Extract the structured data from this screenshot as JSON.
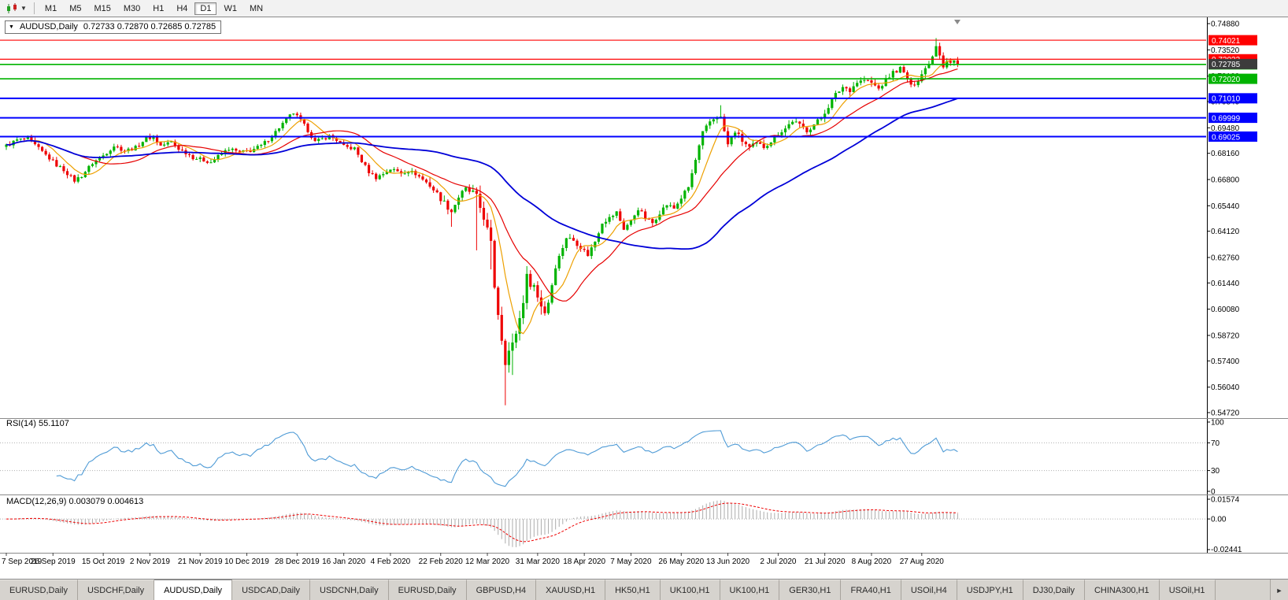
{
  "toolbar": {
    "timeframes": [
      {
        "label": "M1",
        "active": false
      },
      {
        "label": "M5",
        "active": false
      },
      {
        "label": "M15",
        "active": false
      },
      {
        "label": "M30",
        "active": false
      },
      {
        "label": "H1",
        "active": false
      },
      {
        "label": "H4",
        "active": false
      },
      {
        "label": "D1",
        "active": true
      },
      {
        "label": "W1",
        "active": false
      },
      {
        "label": "MN",
        "active": false
      }
    ],
    "chart_type_dropdown_icon": "▼"
  },
  "chart": {
    "symbol": "AUDUSD,Daily",
    "ohlc_text": "0.72733 0.72870 0.72685 0.72785",
    "collapse_icon": "▼"
  },
  "chart_data": {
    "type": "candlestick_with_indicators",
    "main": {
      "title": "AUDUSD,Daily",
      "count": 266,
      "up_color": "#00b300",
      "down_color": "#ee0000",
      "current_price": 0.72785,
      "current_label": "0.72785",
      "current_box_color": "#3c3c3c",
      "price_axis": {
        "min": 0.5472,
        "max": 0.7488
      },
      "price_ticks": [
        "0.74880",
        "0.73520",
        "0.72160",
        "0.70840",
        "0.69480",
        "0.68160",
        "0.66800",
        "0.65440",
        "0.64120",
        "0.62760",
        "0.61440",
        "0.60080",
        "0.58720",
        "0.57400",
        "0.56040",
        "0.54720"
      ],
      "hlines": [
        {
          "price": 0.74021,
          "label": "0.74021",
          "color": "#ff0000",
          "width": 1.2
        },
        {
          "price": 0.73033,
          "label": "0.73033",
          "color": "#ff0000",
          "width": 1.2
        },
        {
          "price": 0.72765,
          "label": "0.72765",
          "color": "#00b300",
          "width": 1.6
        },
        {
          "price": 0.7202,
          "label": "0.72020",
          "color": "#00b300",
          "width": 1.6
        },
        {
          "price": 0.7101,
          "label": "0.71010",
          "color": "#0000ff",
          "width": 2
        },
        {
          "price": 0.69999,
          "label": "0.69999",
          "color": "#0000ff",
          "width": 2
        },
        {
          "price": 0.69025,
          "label": "0.69025",
          "color": "#0000ff",
          "width": 2
        }
      ],
      "ma": [
        {
          "period": 8,
          "color": "#eda000",
          "width": 1.2
        },
        {
          "period": 21,
          "color": "#e60000",
          "width": 1.2
        },
        {
          "period": 60,
          "color": "#0000d8",
          "width": 1.8
        }
      ],
      "anchors": [
        [
          0,
          0.6855
        ],
        [
          3,
          0.6885
        ],
        [
          6,
          0.689
        ],
        [
          9,
          0.684
        ],
        [
          12,
          0.679
        ],
        [
          14,
          0.6755
        ],
        [
          16,
          0.673
        ],
        [
          19,
          0.6675
        ],
        [
          21,
          0.67
        ],
        [
          24,
          0.6765
        ],
        [
          27,
          0.6805
        ],
        [
          30,
          0.6855
        ],
        [
          33,
          0.683
        ],
        [
          36,
          0.6845
        ],
        [
          39,
          0.6895
        ],
        [
          41,
          0.69
        ],
        [
          43,
          0.6855
        ],
        [
          46,
          0.6875
        ],
        [
          48,
          0.684
        ],
        [
          50,
          0.682
        ],
        [
          52,
          0.6795
        ],
        [
          55,
          0.678
        ],
        [
          57,
          0.677
        ],
        [
          60,
          0.6815
        ],
        [
          62,
          0.684
        ],
        [
          65,
          0.682
        ],
        [
          68,
          0.683
        ],
        [
          71,
          0.6855
        ],
        [
          74,
          0.6905
        ],
        [
          76,
          0.695
        ],
        [
          79,
          0.701
        ],
        [
          80,
          0.7025
        ],
        [
          82,
          0.6985
        ],
        [
          84,
          0.6935
        ],
        [
          86,
          0.6875
        ],
        [
          88,
          0.689
        ],
        [
          90,
          0.6905
        ],
        [
          92,
          0.6885
        ],
        [
          94,
          0.685
        ],
        [
          97,
          0.684
        ],
        [
          99,
          0.6775
        ],
        [
          101,
          0.672
        ],
        [
          103,
          0.669
        ],
        [
          105,
          0.671
        ],
        [
          107,
          0.6735
        ],
        [
          110,
          0.6715
        ],
        [
          112,
          0.6725
        ],
        [
          114,
          0.671
        ],
        [
          116,
          0.668
        ],
        [
          118,
          0.665
        ],
        [
          120,
          0.6605
        ],
        [
          122,
          0.656
        ],
        [
          124,
          0.6515
        ],
        [
          126,
          0.659
        ],
        [
          128,
          0.663
        ],
        [
          130,
          0.6605
        ],
        [
          131,
          0.658
        ],
        [
          133,
          0.649
        ],
        [
          135,
          0.634
        ],
        [
          136,
          0.613
        ],
        [
          137,
          0.599
        ],
        [
          138,
          0.586
        ],
        [
          139,
          0.5745
        ],
        [
          140,
          0.579
        ],
        [
          141,
          0.582
        ],
        [
          142,
          0.589
        ],
        [
          143,
          0.596
        ],
        [
          144,
          0.606
        ],
        [
          145,
          0.617
        ],
        [
          146,
          0.615
        ],
        [
          147,
          0.613
        ],
        [
          148,
          0.607
        ],
        [
          150,
          0.5995
        ],
        [
          151,
          0.605
        ],
        [
          153,
          0.623
        ],
        [
          155,
          0.633
        ],
        [
          156,
          0.638
        ],
        [
          158,
          0.6365
        ],
        [
          160,
          0.633
        ],
        [
          162,
          0.629
        ],
        [
          164,
          0.636
        ],
        [
          166,
          0.646
        ],
        [
          168,
          0.648
        ],
        [
          170,
          0.651
        ],
        [
          172,
          0.6425
        ],
        [
          174,
          0.6465
        ],
        [
          176,
          0.653
        ],
        [
          178,
          0.648
        ],
        [
          180,
          0.6455
        ],
        [
          182,
          0.651
        ],
        [
          184,
          0.655
        ],
        [
          186,
          0.653
        ],
        [
          188,
          0.6585
        ],
        [
          190,
          0.664
        ],
        [
          192,
          0.678
        ],
        [
          194,
          0.692
        ],
        [
          196,
          0.698
        ],
        [
          198,
          0.701
        ],
        [
          199,
          0.7
        ],
        [
          201,
          0.686
        ],
        [
          203,
          0.693
        ],
        [
          205,
          0.688
        ],
        [
          207,
          0.6845
        ],
        [
          209,
          0.6865
        ],
        [
          211,
          0.685
        ],
        [
          213,
          0.688
        ],
        [
          215,
          0.692
        ],
        [
          217,
          0.6945
        ],
        [
          219,
          0.6985
        ],
        [
          221,
          0.696
        ],
        [
          223,
          0.6935
        ],
        [
          225,
          0.6965
        ],
        [
          227,
          0.7
        ],
        [
          229,
          0.706
        ],
        [
          231,
          0.712
        ],
        [
          233,
          0.716
        ],
        [
          235,
          0.7145
        ],
        [
          237,
          0.7185
        ],
        [
          239,
          0.7195
        ],
        [
          241,
          0.718
        ],
        [
          243,
          0.715
        ],
        [
          245,
          0.7195
        ],
        [
          247,
          0.7235
        ],
        [
          249,
          0.7255
        ],
        [
          251,
          0.7205
        ],
        [
          252,
          0.716
        ],
        [
          254,
          0.72
        ],
        [
          256,
          0.7255
        ],
        [
          258,
          0.732
        ],
        [
          259,
          0.738
        ],
        [
          260,
          0.733
        ],
        [
          261,
          0.727
        ],
        [
          262,
          0.73
        ],
        [
          263,
          0.7285
        ],
        [
          264,
          0.7295
        ],
        [
          265,
          0.72785
        ]
      ],
      "spikes": [
        {
          "i": 19,
          "low": 0.666
        },
        {
          "i": 124,
          "low": 0.6435
        },
        {
          "i": 131,
          "low": 0.6313
        },
        {
          "i": 135,
          "low": 0.6214
        },
        {
          "i": 139,
          "low": 0.551
        },
        {
          "i": 141,
          "low": 0.5667
        },
        {
          "i": 199,
          "high": 0.7065
        },
        {
          "i": 259,
          "high": 0.7413
        }
      ],
      "vol_zones": [
        {
          "from": 0,
          "to": 117,
          "v": 0.0022
        },
        {
          "from": 118,
          "to": 129,
          "v": 0.0034
        },
        {
          "from": 130,
          "to": 152,
          "v": 0.006
        },
        {
          "from": 153,
          "to": 189,
          "v": 0.0026
        },
        {
          "from": 190,
          "to": 265,
          "v": 0.0028
        }
      ]
    },
    "rsi": {
      "label": "RSI(14) 55.1107",
      "period": 14,
      "current_value": 55.1107,
      "color": "#4f9bd6",
      "levels": [
        70,
        30
      ],
      "axis": [
        {
          "label": "100",
          "v": 100
        },
        {
          "label": "70",
          "v": 70
        },
        {
          "label": "30",
          "v": 30
        },
        {
          "label": "0",
          "v": 0
        }
      ]
    },
    "macd": {
      "label": "MACD(12,26,9) 0.003079 0.004613",
      "fast": 12,
      "slow": 26,
      "signal_period": 9,
      "current_macd": 0.003079,
      "current_signal": 0.004613,
      "hist_color": "#ababab",
      "signal_color": "#ee0000",
      "axis": [
        {
          "label": "0.01574",
          "v": 0.01574
        },
        {
          "label": "0.00",
          "v": 0
        },
        {
          "label": "-0.02441",
          "v": -0.02441
        }
      ]
    },
    "x_labels": [
      {
        "label": "7 Sep 2019",
        "i": 0
      },
      {
        "label": "26 Sep 2019",
        "i": 13
      },
      {
        "label": "15 Oct 2019",
        "i": 27
      },
      {
        "label": "2 Nov 2019",
        "i": 40
      },
      {
        "label": "21 Nov 2019",
        "i": 54
      },
      {
        "label": "10 Dec 2019",
        "i": 67
      },
      {
        "label": "28 Dec 2019",
        "i": 81
      },
      {
        "label": "16 Jan 2020",
        "i": 94
      },
      {
        "label": "4 Feb 2020",
        "i": 107
      },
      {
        "label": "22 Feb 2020",
        "i": 121
      },
      {
        "label": "12 Mar 2020",
        "i": 134
      },
      {
        "label": "31 Mar 2020",
        "i": 148
      },
      {
        "label": "18 Apr 2020",
        "i": 161
      },
      {
        "label": "7 May 2020",
        "i": 174
      },
      {
        "label": "26 May 2020",
        "i": 188
      },
      {
        "label": "13 Jun 2020",
        "i": 201
      },
      {
        "label": "2 Jul 2020",
        "i": 215
      },
      {
        "label": "21 Jul 2020",
        "i": 228
      },
      {
        "label": "8 Aug 2020",
        "i": 241
      },
      {
        "label": "27 Aug 2020",
        "i": 255
      }
    ]
  },
  "tabbar": {
    "scroll_icon": "►",
    "tabs": [
      {
        "label": "EURUSD,Daily",
        "active": false
      },
      {
        "label": "USDCHF,Daily",
        "active": false
      },
      {
        "label": "AUDUSD,Daily",
        "active": true
      },
      {
        "label": "USDCAD,Daily",
        "active": false
      },
      {
        "label": "USDCNH,Daily",
        "active": false
      },
      {
        "label": "EURUSD,Daily",
        "active": false
      },
      {
        "label": "GBPUSD,H4",
        "active": false
      },
      {
        "label": "XAUUSD,H1",
        "active": false
      },
      {
        "label": "HK50,H1",
        "active": false
      },
      {
        "label": "UK100,H1",
        "active": false
      },
      {
        "label": "UK100,H1",
        "active": false
      },
      {
        "label": "GER30,H1",
        "active": false
      },
      {
        "label": "FRA40,H1",
        "active": false
      },
      {
        "label": "USOil,H4",
        "active": false
      },
      {
        "label": "USDJPY,H1",
        "active": false
      },
      {
        "label": "DJ30,Daily",
        "active": false
      },
      {
        "label": "CHINA300,H1",
        "active": false
      },
      {
        "label": "USOil,H1",
        "active": false
      }
    ]
  }
}
